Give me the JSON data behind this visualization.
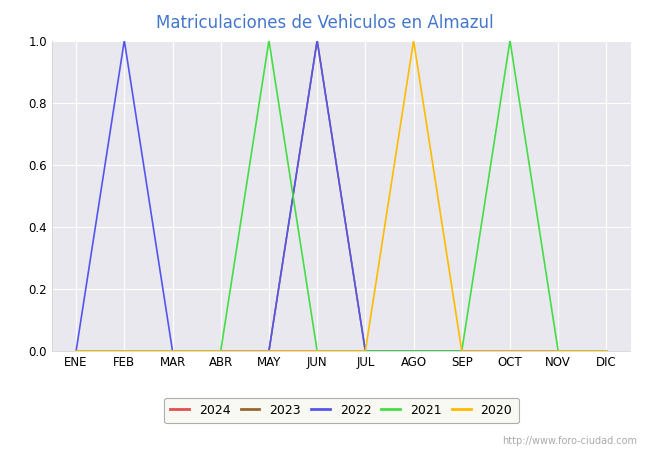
{
  "title": "Matriculaciones de Vehiculos en Almazul",
  "title_color": "#4477cc",
  "months": [
    "ENE",
    "FEB",
    "MAR",
    "ABR",
    "MAY",
    "JUN",
    "JUL",
    "AGO",
    "SEP",
    "OCT",
    "NOV",
    "DIC"
  ],
  "series": {
    "2024": {
      "color": "#e05050",
      "data": [
        0,
        0,
        0,
        0,
        0,
        0,
        0,
        0,
        0,
        0,
        0,
        0
      ]
    },
    "2023": {
      "color": "#996633",
      "data": [
        0,
        0,
        0,
        0,
        0,
        1.0,
        0,
        0,
        0,
        0,
        0,
        0
      ]
    },
    "2022": {
      "color": "#5555ee",
      "data": [
        0,
        1.0,
        0,
        0,
        0,
        1.0,
        0,
        0,
        0,
        0,
        0,
        0
      ]
    },
    "2021": {
      "color": "#44dd44",
      "data": [
        0,
        0,
        0,
        0,
        1.0,
        0,
        0,
        0,
        0,
        1.0,
        0,
        0
      ]
    },
    "2020": {
      "color": "#ffbb00",
      "data": [
        0,
        0,
        0,
        0,
        0,
        0,
        0,
        1.0,
        0,
        0,
        0,
        0
      ]
    }
  },
  "series_order": [
    "2024",
    "2023",
    "2022",
    "2021",
    "2020"
  ],
  "ylim": [
    0.0,
    1.0
  ],
  "yticks": [
    0.0,
    0.2,
    0.4,
    0.6,
    0.8,
    1.0
  ],
  "plot_bg_color": "#e8e8ee",
  "grid_color": "white",
  "watermark": "http://www.foro-ciudad.com",
  "fig_bg_color": "#ffffff",
  "legend_bg": "#f8f8f0",
  "legend_edge": "#999999"
}
